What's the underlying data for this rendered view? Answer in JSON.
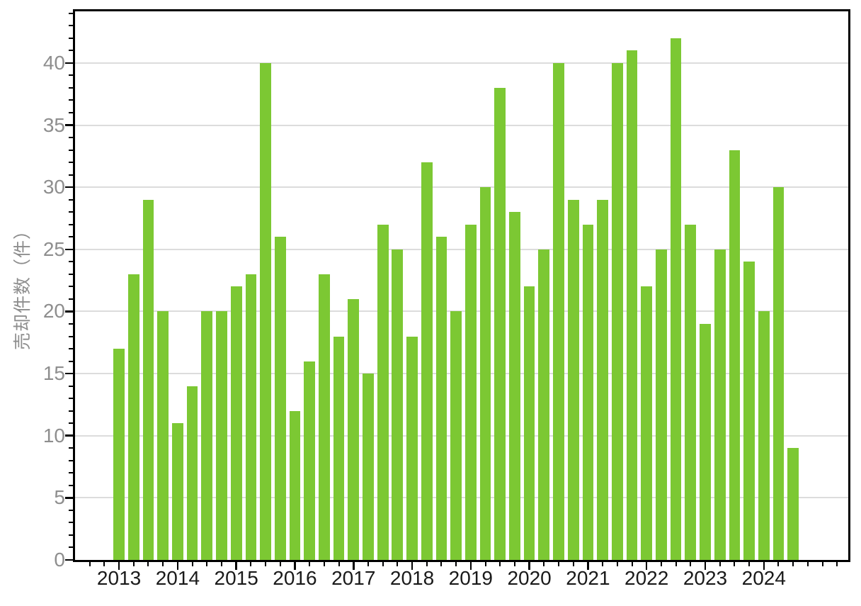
{
  "chart_data": {
    "type": "bar",
    "title": "",
    "xlabel": "",
    "ylabel": "売却件数（件）",
    "x": [
      2013.0,
      2013.25,
      2013.5,
      2013.75,
      2014.0,
      2014.25,
      2014.5,
      2014.75,
      2015.0,
      2015.25,
      2015.5,
      2015.75,
      2016.0,
      2016.25,
      2016.5,
      2016.75,
      2017.0,
      2017.25,
      2017.5,
      2017.75,
      2018.0,
      2018.25,
      2018.5,
      2018.75,
      2019.0,
      2019.25,
      2019.5,
      2019.75,
      2020.0,
      2020.25,
      2020.5,
      2020.75,
      2021.0,
      2021.25,
      2021.5,
      2021.75,
      2022.0,
      2022.25,
      2022.5,
      2022.75,
      2023.0,
      2023.25,
      2023.5,
      2023.75,
      2024.0,
      2024.25,
      2024.5
    ],
    "values": [
      17,
      23,
      29,
      20,
      11,
      14,
      20,
      20,
      22,
      23,
      40,
      26,
      12,
      16,
      23,
      18,
      21,
      15,
      27,
      25,
      18,
      32,
      26,
      20,
      27,
      30,
      38,
      28,
      22,
      25,
      40,
      29,
      27,
      29,
      40,
      41,
      22,
      25,
      42,
      27,
      19,
      25,
      33,
      24,
      20,
      30,
      9
    ],
    "xticks": [
      2013,
      2014,
      2015,
      2016,
      2017,
      2018,
      2019,
      2020,
      2021,
      2022,
      2023,
      2024
    ],
    "yticks": [
      0,
      5,
      10,
      15,
      20,
      25,
      30,
      35,
      40
    ],
    "xlim": [
      2012.25,
      2025.44
    ],
    "ylim": [
      0,
      44.16
    ],
    "bar_width_x": 0.19,
    "grid": "horizontal",
    "colors": {
      "bar": "#7cc833",
      "grid": "#dcdcdc",
      "spine": "#000000",
      "xtick_label": "#1a1a1a",
      "ytick_label": "#8e8e8e",
      "axis_label": "#8e8e8e",
      "background": "#ffffff"
    }
  }
}
